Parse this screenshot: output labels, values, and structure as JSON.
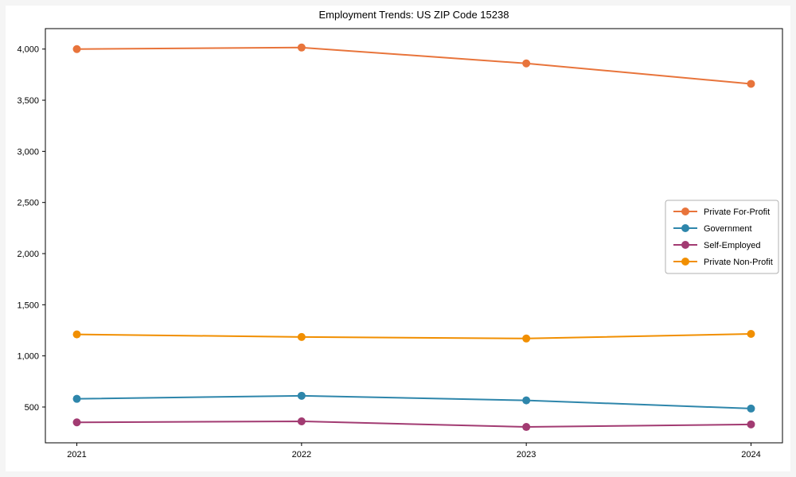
{
  "chart_data": {
    "type": "line",
    "title": "Employment Trends: US ZIP Code 15238",
    "x": [
      2021,
      2022,
      2023,
      2024
    ],
    "xticks": [
      {
        "value": 2021,
        "label": "2021"
      },
      {
        "value": 2022,
        "label": "2022"
      },
      {
        "value": 2023,
        "label": "2023"
      },
      {
        "value": 2024,
        "label": "2024"
      }
    ],
    "yticks": [
      {
        "value": 500,
        "label": "500"
      },
      {
        "value": 1000,
        "label": "1,000"
      },
      {
        "value": 1500,
        "label": "1,500"
      },
      {
        "value": 2000,
        "label": "2,000"
      },
      {
        "value": 2500,
        "label": "2,500"
      },
      {
        "value": 3000,
        "label": "3,000"
      },
      {
        "value": 3500,
        "label": "3,500"
      },
      {
        "value": 4000,
        "label": "4,000"
      }
    ],
    "series": [
      {
        "name": "Private For-Profit",
        "color": "#E8743B",
        "values": [
          4000,
          4015,
          3860,
          3660
        ]
      },
      {
        "name": "Government",
        "color": "#2E86AB",
        "values": [
          580,
          610,
          565,
          485
        ]
      },
      {
        "name": "Self-Employed",
        "color": "#A23B72",
        "values": [
          350,
          360,
          305,
          330
        ]
      },
      {
        "name": "Private Non-Profit",
        "color": "#F18F01",
        "values": [
          1210,
          1185,
          1170,
          1215
        ]
      }
    ],
    "xlabel": "",
    "ylabel": "",
    "xlim": [
      2020.86,
      2024.14
    ],
    "ylim": [
      150,
      4200
    ],
    "grid": false,
    "legend_position": "center-right",
    "axis_color": "#000000"
  }
}
